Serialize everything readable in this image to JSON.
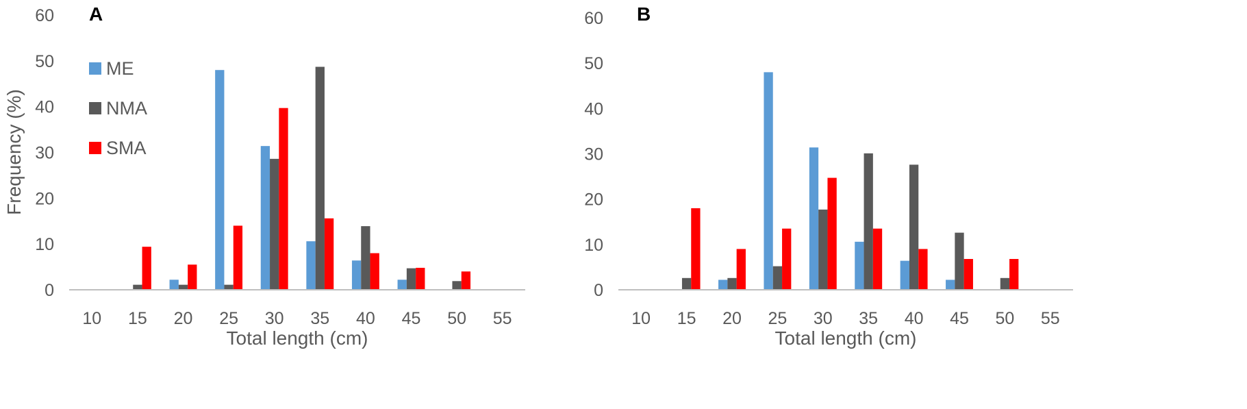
{
  "chart_data": [
    {
      "type": "bar",
      "panel_label": "A",
      "categories": [
        "10",
        "15",
        "20",
        "25",
        "30",
        "35",
        "40",
        "45",
        "50",
        "55"
      ],
      "series": [
        {
          "name": "ME",
          "color": "#5B9BD5",
          "values": [
            0,
            0,
            2.2,
            48,
            31.4,
            10.6,
            6.4,
            2.2,
            0,
            0
          ]
        },
        {
          "name": "NMA",
          "color": "#595959",
          "values": [
            0,
            1.1,
            1.1,
            1.1,
            28.6,
            48.7,
            13.9,
            4.7,
            1.9,
            0
          ]
        },
        {
          "name": "SMA",
          "color": "#FF0000",
          "values": [
            0,
            9.4,
            5.5,
            14,
            39.7,
            15.6,
            8,
            4.8,
            4,
            0
          ]
        }
      ],
      "xlabel": "Total length (cm)",
      "ylabel": "Frequency (%)",
      "ylim": [
        0,
        60
      ],
      "yticks": [
        "0",
        "10",
        "20",
        "30",
        "40",
        "50",
        "60"
      ],
      "legend": "left",
      "grid": false
    },
    {
      "type": "bar",
      "panel_label": "B",
      "categories": [
        "10",
        "15",
        "20",
        "25",
        "30",
        "35",
        "40",
        "45",
        "50",
        "55"
      ],
      "series": [
        {
          "name": "ME",
          "color": "#5B9BD5",
          "values": [
            0,
            0,
            2.2,
            48,
            31.4,
            10.6,
            6.4,
            2.2,
            0,
            0
          ]
        },
        {
          "name": "NMA",
          "color": "#595959",
          "values": [
            0,
            2.6,
            2.6,
            5.2,
            17.7,
            30.1,
            27.6,
            12.6,
            2.6,
            0
          ]
        },
        {
          "name": "SMA",
          "color": "#FF0000",
          "values": [
            0,
            18,
            9,
            13.5,
            24.7,
            13.5,
            9,
            6.8,
            6.8,
            0
          ]
        }
      ],
      "xlabel": "Total length (cm)",
      "ylabel": "",
      "ylim": [
        0,
        60
      ],
      "yticks": [
        "0",
        "10",
        "20",
        "30",
        "40",
        "50",
        "60"
      ],
      "legend": "none",
      "grid": false
    }
  ]
}
